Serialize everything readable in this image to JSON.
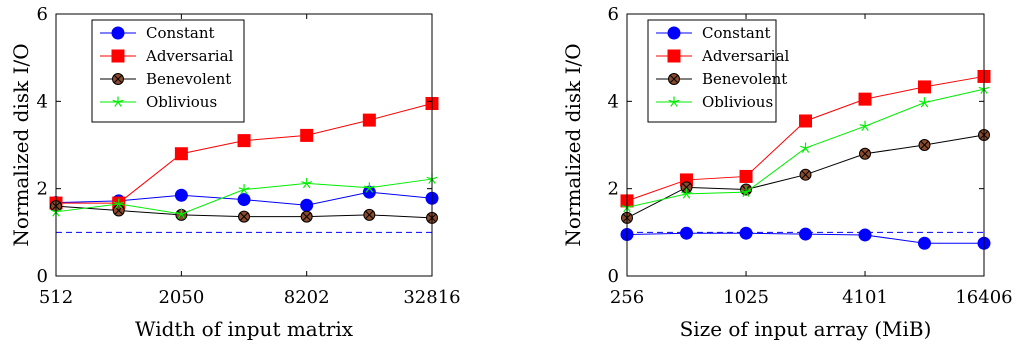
{
  "chart_data": [
    {
      "type": "line",
      "xlabel": "Width of input matrix",
      "ylabel": "Normalized disk I/O",
      "x_scale": "log2",
      "xlim": [
        512,
        32816
      ],
      "ylim": [
        0,
        6
      ],
      "x_ticks": [
        512,
        2050,
        8202,
        32816
      ],
      "y_ticks": [
        0,
        2,
        4,
        6
      ],
      "x": [
        512,
        1025,
        2050,
        4101,
        8202,
        16406,
        32816
      ],
      "legend_position": "top-left",
      "grid": false,
      "baseline": {
        "style": "dashed",
        "color": "#0000ff",
        "value": 1
      },
      "series": [
        {
          "name": "Constant",
          "color": "#0000ff",
          "marker": "circle",
          "values": [
            1.68,
            1.72,
            1.85,
            1.75,
            1.62,
            1.92,
            1.78
          ]
        },
        {
          "name": "Adversarial",
          "color": "#ff0000",
          "marker": "square",
          "values": [
            1.67,
            1.67,
            2.8,
            3.1,
            3.22,
            3.57,
            3.95
          ]
        },
        {
          "name": "Benevolent",
          "color": "#000000",
          "marker": "crossed-circle",
          "values": [
            1.6,
            1.5,
            1.4,
            1.36,
            1.36,
            1.4,
            1.33
          ]
        },
        {
          "name": "Oblivious",
          "color": "#00ee00",
          "marker": "star",
          "values": [
            1.47,
            1.65,
            1.42,
            1.98,
            2.12,
            2.02,
            2.22
          ]
        }
      ]
    },
    {
      "type": "line",
      "xlabel": "Size of input array (MiB)",
      "ylabel": "Normalized disk I/O",
      "x_scale": "log2",
      "xlim": [
        256,
        16406
      ],
      "ylim": [
        0,
        6
      ],
      "x_ticks": [
        256,
        1025,
        4101,
        16406
      ],
      "y_ticks": [
        0,
        2,
        4,
        6
      ],
      "x": [
        256,
        512,
        1025,
        2050,
        4101,
        8202,
        16406
      ],
      "legend_position": "top-left",
      "grid": false,
      "baseline": {
        "style": "dashed",
        "color": "#0000ff",
        "value": 1
      },
      "series": [
        {
          "name": "Constant",
          "color": "#0000ff",
          "marker": "circle",
          "values": [
            0.95,
            0.98,
            0.98,
            0.96,
            0.94,
            0.75,
            0.75
          ]
        },
        {
          "name": "Adversarial",
          "color": "#ff0000",
          "marker": "square",
          "values": [
            1.72,
            2.2,
            2.28,
            3.55,
            4.05,
            4.33,
            4.57
          ]
        },
        {
          "name": "Benevolent",
          "color": "#000000",
          "marker": "crossed-circle",
          "values": [
            1.33,
            2.03,
            1.98,
            2.32,
            2.8,
            3.0,
            3.23
          ]
        },
        {
          "name": "Oblivious",
          "color": "#00ee00",
          "marker": "star",
          "values": [
            1.57,
            1.88,
            1.92,
            2.93,
            3.43,
            3.97,
            4.28
          ]
        }
      ]
    }
  ]
}
